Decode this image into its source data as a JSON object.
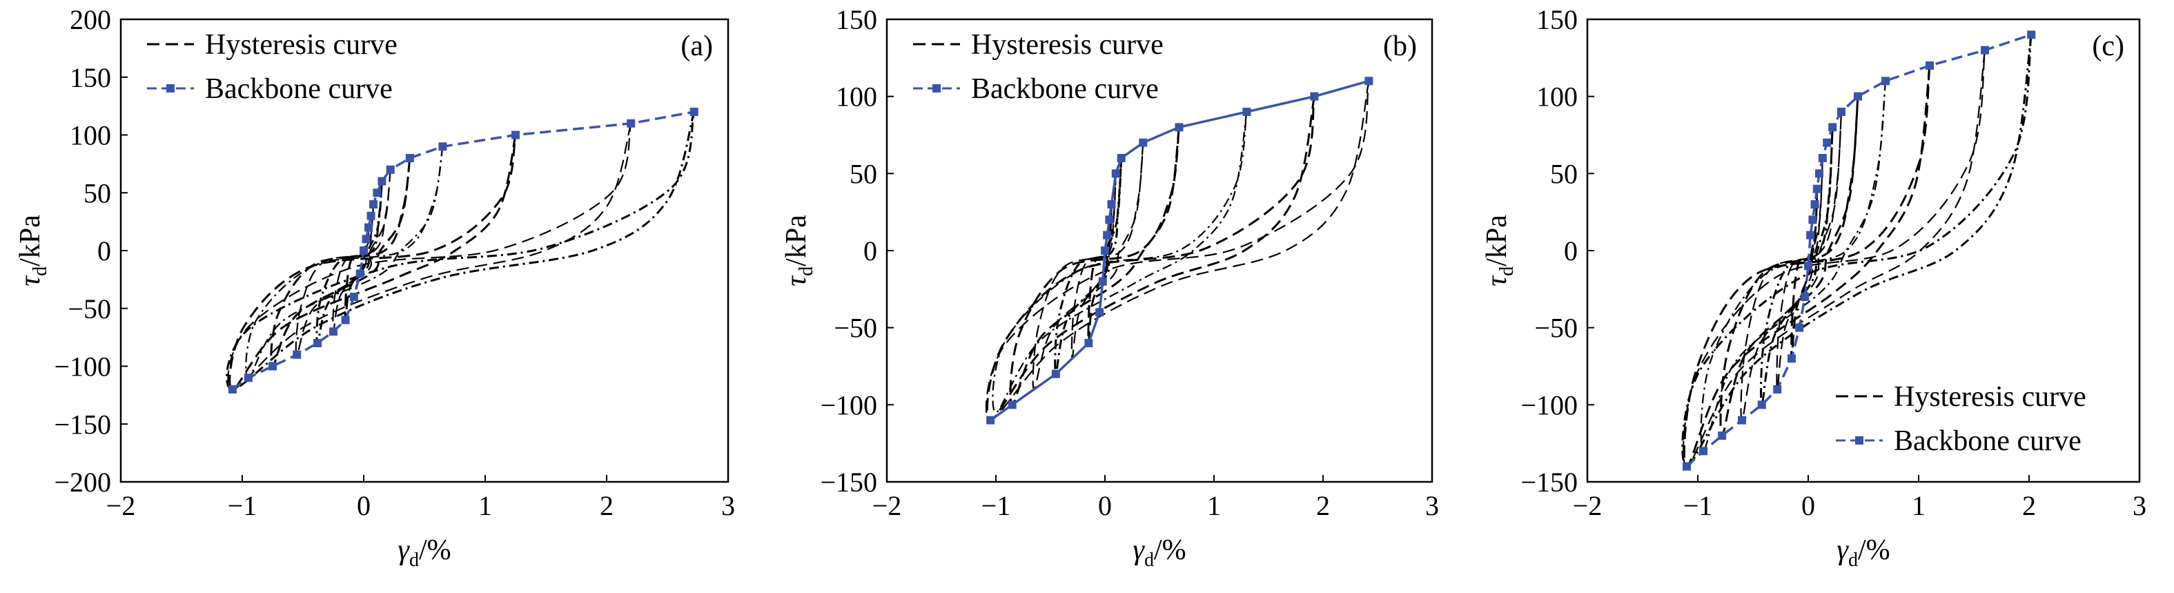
{
  "colors": {
    "hysteresis": "#000000",
    "backbone": "#3a55a8",
    "axis": "#000000"
  },
  "legend": {
    "hysteresis_label": "Hysteresis curve",
    "backbone_label": "Backbone curve"
  },
  "axis_titles": {
    "x_symbol": "γ",
    "x_sub": "d",
    "x_unit": "/%",
    "y_symbol": "τ",
    "y_sub": "d",
    "y_unit": "/kPa"
  },
  "chart_data": [
    {
      "type": "line",
      "panel_label": "(a)",
      "xlim": [
        -2,
        3
      ],
      "ylim": [
        -200,
        200
      ],
      "xticks": [
        -2,
        -1,
        0,
        1,
        2,
        3
      ],
      "yticks": [
        -200,
        -150,
        -100,
        -50,
        0,
        50,
        100,
        150,
        200
      ],
      "grid": false,
      "legend_position": "top-left",
      "series": [
        {
          "name": "Backbone curve",
          "style": "dashed-square-markers",
          "x": [
            -1.08,
            -0.95,
            -0.75,
            -0.55,
            -0.38,
            -0.25,
            -0.15,
            -0.08,
            -0.03,
            0.0,
            0.02,
            0.04,
            0.06,
            0.08,
            0.11,
            0.15,
            0.22,
            0.38,
            0.65,
            1.25,
            2.2,
            2.72
          ],
          "y": [
            -120,
            -110,
            -100,
            -90,
            -80,
            -70,
            -60,
            -40,
            -20,
            0,
            10,
            20,
            30,
            40,
            50,
            60,
            70,
            80,
            90,
            100,
            110,
            120
          ]
        }
      ],
      "hysteresis_peaks": [
        {
          "x": 0.04,
          "y": 20
        },
        {
          "x": 0.08,
          "y": 40
        },
        {
          "x": 0.15,
          "y": 60
        },
        {
          "x": 0.22,
          "y": 70
        },
        {
          "x": 0.38,
          "y": 80
        },
        {
          "x": 0.65,
          "y": 90
        },
        {
          "x": 1.25,
          "y": 100
        },
        {
          "x": 2.2,
          "y": 110
        },
        {
          "x": 2.72,
          "y": 120
        }
      ],
      "hysteresis_troughs": [
        {
          "x": -0.15,
          "y": -60
        },
        {
          "x": -0.25,
          "y": -70
        },
        {
          "x": -0.38,
          "y": -80
        },
        {
          "x": -0.55,
          "y": -90
        },
        {
          "x": -0.75,
          "y": -100
        },
        {
          "x": -0.95,
          "y": -110
        },
        {
          "x": -1.08,
          "y": -120
        },
        {
          "x": -1.08,
          "y": -120
        },
        {
          "x": -1.08,
          "y": -120
        }
      ]
    },
    {
      "type": "line",
      "panel_label": "(b)",
      "xlim": [
        -2,
        3
      ],
      "ylim": [
        -150,
        150
      ],
      "xticks": [
        -2,
        -1,
        0,
        1,
        2,
        3
      ],
      "yticks": [
        -150,
        -100,
        -50,
        0,
        50,
        100,
        150
      ],
      "grid": false,
      "legend_position": "top-left",
      "series": [
        {
          "name": "Backbone curve",
          "style": "solid-square-markers",
          "x": [
            -1.05,
            -0.85,
            -0.45,
            -0.15,
            -0.05,
            -0.02,
            0.0,
            0.02,
            0.04,
            0.06,
            0.1,
            0.15,
            0.35,
            0.68,
            1.3,
            1.92,
            2.42
          ],
          "y": [
            -110,
            -100,
            -80,
            -60,
            -40,
            -20,
            0,
            10,
            20,
            30,
            50,
            60,
            70,
            80,
            90,
            100,
            110
          ]
        }
      ],
      "hysteresis_peaks": [
        {
          "x": 0.06,
          "y": 30
        },
        {
          "x": 0.1,
          "y": 50
        },
        {
          "x": 0.15,
          "y": 60
        },
        {
          "x": 0.35,
          "y": 70
        },
        {
          "x": 0.68,
          "y": 80
        },
        {
          "x": 1.3,
          "y": 90
        },
        {
          "x": 1.92,
          "y": 100
        },
        {
          "x": 2.42,
          "y": 110
        }
      ],
      "hysteresis_troughs": [
        {
          "x": -0.15,
          "y": -60
        },
        {
          "x": -0.3,
          "y": -70
        },
        {
          "x": -0.45,
          "y": -80
        },
        {
          "x": -0.65,
          "y": -90
        },
        {
          "x": -0.85,
          "y": -100
        },
        {
          "x": -1.0,
          "y": -105
        },
        {
          "x": -1.05,
          "y": -110
        },
        {
          "x": -1.05,
          "y": -110
        }
      ]
    },
    {
      "type": "line",
      "panel_label": "(c)",
      "xlim": [
        -2,
        3
      ],
      "ylim": [
        -150,
        150
      ],
      "xticks": [
        -2,
        -1,
        0,
        1,
        2,
        3
      ],
      "yticks": [
        -150,
        -100,
        -50,
        0,
        50,
        100,
        150
      ],
      "grid": false,
      "legend_position": "bottom-right",
      "series": [
        {
          "name": "Backbone curve",
          "style": "dashed-square-markers",
          "x": [
            -1.1,
            -0.95,
            -0.78,
            -0.6,
            -0.42,
            -0.28,
            -0.15,
            -0.08,
            -0.03,
            0.0,
            0.02,
            0.04,
            0.06,
            0.08,
            0.1,
            0.13,
            0.17,
            0.22,
            0.3,
            0.45,
            0.7,
            1.1,
            1.6,
            2.02
          ],
          "y": [
            -140,
            -130,
            -120,
            -110,
            -100,
            -90,
            -70,
            -50,
            -30,
            -10,
            10,
            20,
            30,
            40,
            50,
            60,
            70,
            80,
            90,
            100,
            110,
            120,
            130,
            140
          ]
        }
      ],
      "hysteresis_peaks": [
        {
          "x": 0.08,
          "y": 40
        },
        {
          "x": 0.13,
          "y": 60
        },
        {
          "x": 0.22,
          "y": 80
        },
        {
          "x": 0.3,
          "y": 90
        },
        {
          "x": 0.45,
          "y": 100
        },
        {
          "x": 0.7,
          "y": 110
        },
        {
          "x": 1.1,
          "y": 120
        },
        {
          "x": 1.6,
          "y": 130
        },
        {
          "x": 2.02,
          "y": 140
        }
      ],
      "hysteresis_troughs": [
        {
          "x": -0.15,
          "y": -70
        },
        {
          "x": -0.28,
          "y": -90
        },
        {
          "x": -0.42,
          "y": -100
        },
        {
          "x": -0.6,
          "y": -110
        },
        {
          "x": -0.78,
          "y": -120
        },
        {
          "x": -0.95,
          "y": -130
        },
        {
          "x": -1.1,
          "y": -140
        },
        {
          "x": -1.1,
          "y": -140
        },
        {
          "x": -1.1,
          "y": -140
        }
      ]
    }
  ]
}
